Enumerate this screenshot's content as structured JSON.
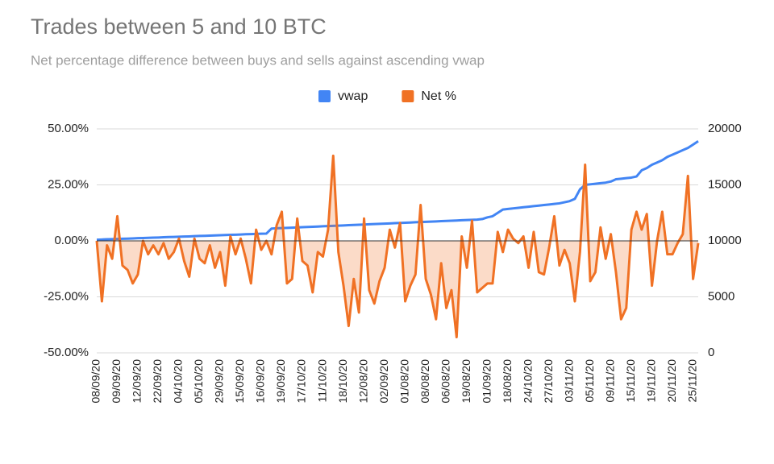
{
  "chart_data": {
    "type": "line",
    "title": "Trades between 5 and 10 BTC",
    "subtitle": "Net percentage difference between buys and sells against ascending vwap",
    "categories": [
      "08/09/20",
      null,
      null,
      null,
      "09/09/20",
      null,
      null,
      null,
      "12/09/20",
      null,
      null,
      null,
      "22/09/20",
      null,
      null,
      null,
      "04/10/20",
      null,
      null,
      null,
      "05/10/20",
      null,
      null,
      null,
      "29/09/20",
      null,
      null,
      null,
      "15/09/20",
      null,
      null,
      null,
      "16/09/20",
      null,
      null,
      null,
      "19/09/20",
      null,
      null,
      null,
      "17/10/20",
      null,
      null,
      null,
      "11/10/20",
      null,
      null,
      null,
      "18/10/20",
      null,
      null,
      null,
      "12/08/20",
      null,
      null,
      null,
      "02/09/20",
      null,
      null,
      null,
      "01/08/20",
      null,
      null,
      null,
      "08/08/20",
      null,
      null,
      null,
      "06/08/20",
      null,
      null,
      null,
      "19/08/20",
      null,
      null,
      null,
      "01/09/20",
      null,
      null,
      null,
      "18/08/20",
      null,
      null,
      null,
      "24/10/20",
      null,
      null,
      null,
      "27/10/20",
      null,
      null,
      null,
      "03/11/20",
      null,
      null,
      null,
      "05/11/20",
      null,
      null,
      null,
      "09/11/20",
      null,
      null,
      null,
      "15/11/20",
      null,
      null,
      null,
      "19/11/20",
      null,
      null,
      null,
      "20/11/20",
      null,
      null,
      null,
      "25/11/20",
      null
    ],
    "series": [
      {
        "name": "vwap",
        "color": "#4285f4",
        "axis": "y2",
        "values": [
          10100,
          10120,
          10140,
          10150,
          10170,
          10190,
          10200,
          10220,
          10240,
          10250,
          10270,
          10290,
          10300,
          10320,
          10340,
          10350,
          10370,
          10390,
          10400,
          10420,
          10440,
          10450,
          10470,
          10490,
          10500,
          10520,
          10540,
          10550,
          10570,
          10590,
          10600,
          10620,
          10640,
          10650,
          11100,
          11120,
          11140,
          11160,
          11180,
          11200,
          11220,
          11240,
          11260,
          11280,
          11300,
          11320,
          11340,
          11360,
          11380,
          11400,
          11420,
          11440,
          11460,
          11480,
          11500,
          11520,
          11540,
          11560,
          11580,
          11600,
          11620,
          11640,
          11660,
          11680,
          11700,
          11720,
          11740,
          11760,
          11780,
          11800,
          11820,
          11840,
          11860,
          11880,
          11900,
          11950,
          12100,
          12200,
          12500,
          12800,
          12850,
          12900,
          12950,
          13000,
          13050,
          13100,
          13150,
          13200,
          13250,
          13300,
          13350,
          13450,
          13550,
          13750,
          14600,
          15000,
          15050,
          15100,
          15150,
          15200,
          15300,
          15500,
          15550,
          15600,
          15650,
          15750,
          16300,
          16500,
          16800,
          17000,
          17200,
          17500,
          17700,
          17900,
          18100,
          18300,
          18600,
          18900
        ]
      },
      {
        "name": "Net %",
        "color": "#f07124",
        "area": true,
        "values": [
          0,
          -27,
          -2,
          -8,
          11,
          -11,
          -13,
          -19,
          -15,
          0,
          -6,
          -2,
          -6,
          -1,
          -8,
          -5,
          1,
          -9,
          -16,
          1,
          -8,
          -10,
          -2,
          -12,
          -5,
          -20,
          2,
          -6,
          1,
          -8,
          -19,
          5,
          -4,
          0,
          -6,
          7,
          13,
          -19,
          -17,
          10,
          -9,
          -11,
          -23,
          -5,
          -7,
          5,
          38,
          -5,
          -20,
          -38,
          -17,
          -32,
          10,
          -22,
          -28,
          -18,
          -12,
          5,
          -3,
          8,
          -27,
          -20,
          -15,
          16,
          -17,
          -24,
          -35,
          -10,
          -30,
          -22,
          -43,
          2,
          -12,
          9,
          -23,
          -21,
          -19,
          -19,
          4,
          -5,
          5,
          1,
          -1,
          2,
          -12,
          4,
          -14,
          -15,
          -3,
          11,
          -11,
          -4,
          -10,
          -27,
          -5,
          34,
          -18,
          -14,
          6,
          -8,
          3,
          -14,
          -35,
          -30,
          5,
          13,
          5,
          12,
          -20,
          0,
          13,
          -6,
          -6,
          -1,
          3,
          29,
          -17,
          -1
        ]
      }
    ],
    "ylim": [
      -50,
      50
    ],
    "yticks": [
      {
        "value": 50,
        "label": "50.00%"
      },
      {
        "value": 25,
        "label": "25.00%"
      },
      {
        "value": 0,
        "label": "0.00%"
      },
      {
        "value": -25,
        "label": "-25.00%"
      },
      {
        "value": -50,
        "label": "-50.00%"
      }
    ],
    "y2lim": [
      0,
      20000
    ],
    "y2ticks": [
      0,
      5000,
      10000,
      15000,
      20000
    ],
    "grid": true,
    "legend": "top"
  }
}
